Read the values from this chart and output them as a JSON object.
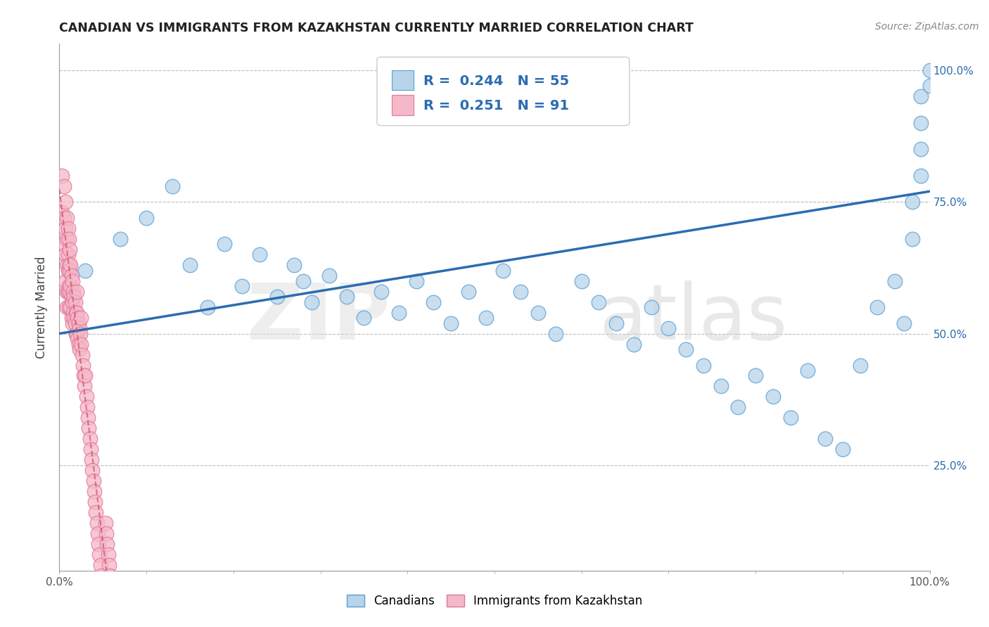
{
  "title": "CANADIAN VS IMMIGRANTS FROM KAZAKHSTAN CURRENTLY MARRIED CORRELATION CHART",
  "source": "Source: ZipAtlas.com",
  "ylabel": "Currently Married",
  "xlim": [
    0.0,
    1.0
  ],
  "ylim": [
    0.05,
    1.05
  ],
  "y_tick_positions": [
    0.25,
    0.5,
    0.75,
    1.0
  ],
  "y_tick_labels": [
    "25.0%",
    "50.0%",
    "75.0%",
    "100.0%"
  ],
  "stat_box": {
    "blue_R": "0.244",
    "blue_N": "55",
    "pink_R": "0.251",
    "pink_N": "91"
  },
  "canadian_color": "#b8d4ea",
  "canadian_edge": "#5a9fd4",
  "kazakh_color": "#f5b8c8",
  "kazakh_edge": "#e07898",
  "regression_blue": "#2b6cb0",
  "regression_pink": "#d05070",
  "background_color": "#ffffff",
  "canadians_x": [
    0.03,
    0.07,
    0.1,
    0.13,
    0.15,
    0.17,
    0.19,
    0.21,
    0.23,
    0.25,
    0.27,
    0.28,
    0.29,
    0.31,
    0.33,
    0.35,
    0.37,
    0.39,
    0.41,
    0.43,
    0.45,
    0.47,
    0.49,
    0.51,
    0.53,
    0.55,
    0.57,
    0.6,
    0.62,
    0.64,
    0.66,
    0.68,
    0.7,
    0.72,
    0.74,
    0.76,
    0.78,
    0.8,
    0.82,
    0.84,
    0.86,
    0.88,
    0.9,
    0.92,
    0.94,
    0.96,
    0.97,
    0.98,
    0.98,
    0.99,
    0.99,
    0.99,
    0.99,
    1.0,
    1.0
  ],
  "canadians_y": [
    0.62,
    0.68,
    0.72,
    0.78,
    0.63,
    0.55,
    0.67,
    0.59,
    0.65,
    0.57,
    0.63,
    0.6,
    0.56,
    0.61,
    0.57,
    0.53,
    0.58,
    0.54,
    0.6,
    0.56,
    0.52,
    0.58,
    0.53,
    0.62,
    0.58,
    0.54,
    0.5,
    0.6,
    0.56,
    0.52,
    0.48,
    0.55,
    0.51,
    0.47,
    0.44,
    0.4,
    0.36,
    0.42,
    0.38,
    0.34,
    0.43,
    0.3,
    0.28,
    0.44,
    0.55,
    0.6,
    0.52,
    0.75,
    0.68,
    0.85,
    0.9,
    0.95,
    0.8,
    0.97,
    1.0
  ],
  "kazakhs_x": [
    0.003,
    0.003,
    0.005,
    0.005,
    0.005,
    0.007,
    0.007,
    0.007,
    0.007,
    0.009,
    0.009,
    0.009,
    0.009,
    0.009,
    0.01,
    0.01,
    0.01,
    0.01,
    0.011,
    0.011,
    0.011,
    0.011,
    0.012,
    0.012,
    0.012,
    0.013,
    0.013,
    0.013,
    0.014,
    0.014,
    0.014,
    0.015,
    0.015,
    0.015,
    0.016,
    0.016,
    0.017,
    0.017,
    0.018,
    0.018,
    0.019,
    0.019,
    0.02,
    0.02,
    0.02,
    0.021,
    0.021,
    0.022,
    0.022,
    0.023,
    0.023,
    0.024,
    0.025,
    0.025,
    0.026,
    0.027,
    0.028,
    0.029,
    0.03,
    0.031,
    0.032,
    0.033,
    0.034,
    0.035,
    0.036,
    0.037,
    0.038,
    0.039,
    0.04,
    0.041,
    0.042,
    0.043,
    0.044,
    0.045,
    0.046,
    0.047,
    0.048,
    0.049,
    0.05,
    0.051,
    0.052,
    0.053,
    0.054,
    0.055,
    0.056,
    0.057,
    0.058,
    0.059,
    0.06,
    0.061,
    0.062
  ],
  "kazakhs_y": [
    0.8,
    0.73,
    0.78,
    0.72,
    0.67,
    0.75,
    0.7,
    0.65,
    0.6,
    0.72,
    0.68,
    0.63,
    0.58,
    0.55,
    0.7,
    0.65,
    0.62,
    0.58,
    0.68,
    0.63,
    0.59,
    0.55,
    0.66,
    0.62,
    0.58,
    0.63,
    0.59,
    0.55,
    0.61,
    0.57,
    0.53,
    0.6,
    0.56,
    0.52,
    0.58,
    0.54,
    0.57,
    0.53,
    0.56,
    0.52,
    0.54,
    0.5,
    0.58,
    0.54,
    0.5,
    0.53,
    0.49,
    0.52,
    0.48,
    0.51,
    0.47,
    0.5,
    0.53,
    0.48,
    0.46,
    0.44,
    0.42,
    0.4,
    0.42,
    0.38,
    0.36,
    0.34,
    0.32,
    0.3,
    0.28,
    0.26,
    0.24,
    0.22,
    0.2,
    0.18,
    0.16,
    0.14,
    0.12,
    0.1,
    0.08,
    0.06,
    0.04,
    0.03,
    0.025,
    0.02,
    0.015,
    0.14,
    0.12,
    0.1,
    0.08,
    0.06,
    0.04,
    0.03,
    0.02,
    0.015,
    0.01
  ]
}
